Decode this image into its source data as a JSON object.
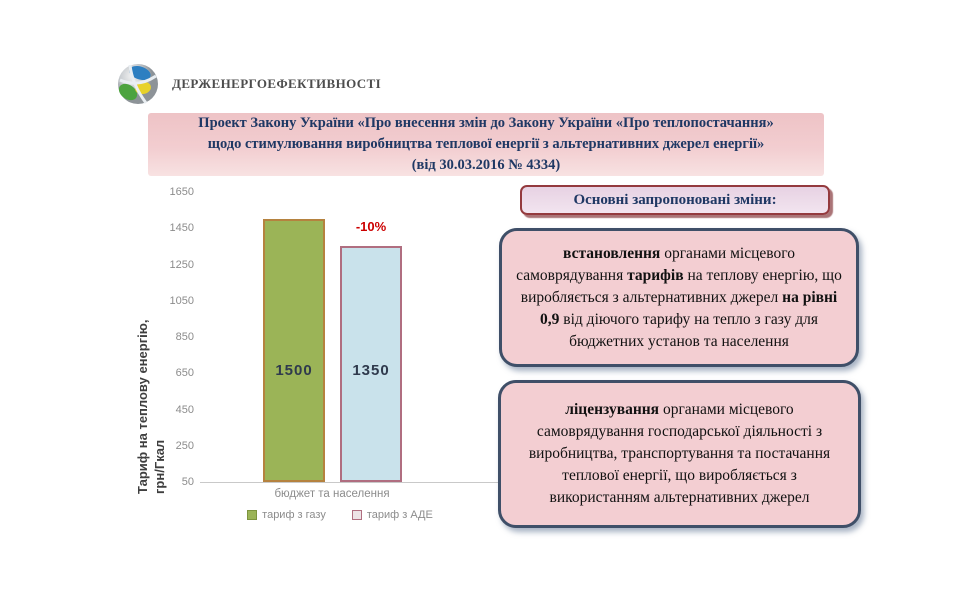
{
  "logo": {
    "text": "Держенергоефективності"
  },
  "title": {
    "text": "Проект Закону України «Про внесення змін до Закону України «Про теплопостачання»\nщодо стимулювання виробництва теплової енергії з альтернативних джерел енергії»\n(від 30.03.2016 № 4334)"
  },
  "chart_data": {
    "type": "bar",
    "categories": [
      "бюджет та населення"
    ],
    "series": [
      {
        "name": "тариф з газу",
        "values": [
          1500
        ],
        "fill": "#9bb457",
        "border": "#b5823f",
        "legend_fill": "#9bb457",
        "legend_border": "#7d943e"
      },
      {
        "name": "тариф з АДЕ",
        "values": [
          1350
        ],
        "fill": "#c9e2eb",
        "border": "#b06e80",
        "legend_fill": "#ede3e6",
        "legend_border": "#b06e80"
      }
    ],
    "value_labels": [
      "1500",
      "1350"
    ],
    "annotation": {
      "text": "-10%",
      "color": "#cc0000",
      "applies_to_series": 1
    },
    "ylabel": "Тариф на теплову енергію,\nгрн/Гкал",
    "yticks": [
      1650,
      1450,
      1250,
      1050,
      850,
      650,
      450,
      250,
      50
    ],
    "ylim": [
      50,
      1650
    ],
    "grid": false,
    "legend_position": "bottom"
  },
  "changes": {
    "header": "Основні запропоновані зміни:",
    "boxes": [
      {
        "segments": [
          {
            "t": "встановлення ",
            "b": true
          },
          {
            "t": "органами місцевого самоврядування ",
            "b": false
          },
          {
            "t": "тарифів ",
            "b": true
          },
          {
            "t": "на теплову енергію, що виробляється з альтернативних джерел ",
            "b": false
          },
          {
            "t": "на рівні 0,9 ",
            "b": true
          },
          {
            "t": "від діючого тарифу на тепло з газу для бюджетних установ та населення",
            "b": false
          }
        ]
      },
      {
        "segments": [
          {
            "t": "ліцензування ",
            "b": true
          },
          {
            "t": "органами місцевого самоврядування господарської діяльності з виробництва, транспортування та постачання теплової енергії, що виробляється з використанням альтернативних джерел",
            "b": false
          }
        ]
      }
    ]
  },
  "colors": {
    "title_text": "#1f3864",
    "banner_bg": "#f2cdd0",
    "box_bg": "#f3ced2",
    "box_border": "#3f4f68",
    "header_border": "#943a3e",
    "annotation_red": "#cc0000"
  }
}
